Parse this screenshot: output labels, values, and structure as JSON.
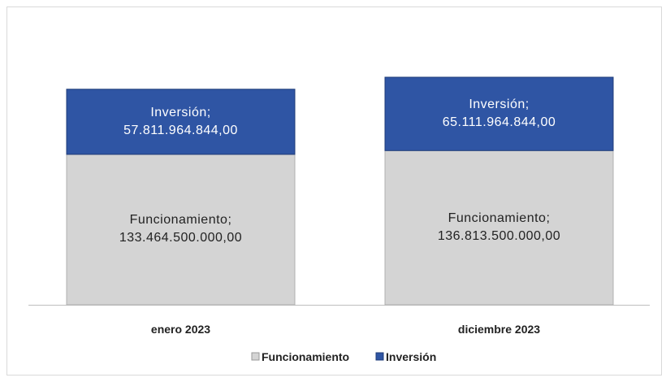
{
  "chart_data": {
    "type": "stacked_bar",
    "categories": [
      "enero 2023",
      "diciembre 2023"
    ],
    "series": [
      {
        "name": "Funcionamiento",
        "color": "#d4d4d4",
        "values": [
          133464500000,
          136813500000
        ],
        "value_labels": [
          "Funcionamiento;\n133.464.500.000,00",
          "Funcionamiento;\n136.813.500.000,00"
        ]
      },
      {
        "name": "Inversión",
        "color": "#2f55a4",
        "values": [
          57811964844,
          65111964844
        ],
        "value_labels": [
          "Inversión;\n57.811.964.844,00",
          "Inversión;\n65.111.964.844,00"
        ]
      }
    ],
    "legend": "bottom"
  }
}
